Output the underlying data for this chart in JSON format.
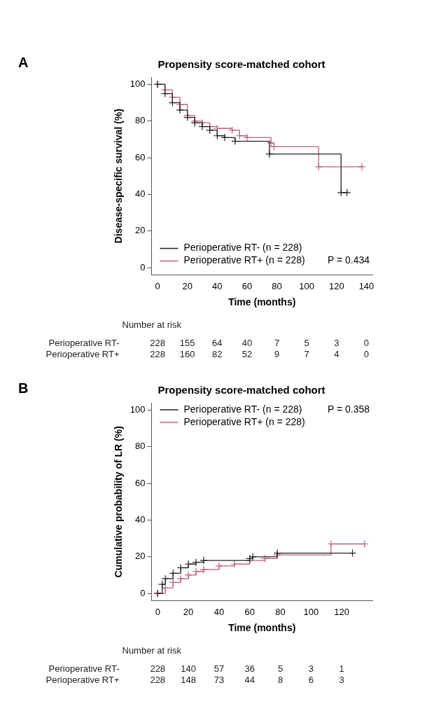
{
  "chart_data": [
    {
      "type": "step",
      "title": "Propensity score-matched cohort",
      "xlabel": "Time (months)",
      "ylabel": "Disease-specific survival (%)",
      "xlim": [
        -4,
        144
      ],
      "ylim": [
        -4,
        104
      ],
      "xticks": [
        0,
        20,
        40,
        60,
        80,
        100,
        120,
        140
      ],
      "yticks": [
        0,
        20,
        40,
        60,
        80,
        100
      ],
      "grid": false,
      "legend": "bottom left",
      "marker": "cross",
      "series": [
        {
          "name": "Perioperative RT- (n = 228)",
          "color": "#222222",
          "x": [
            0,
            5,
            10,
            15,
            20,
            25,
            30,
            35,
            40,
            45,
            52,
            75,
            123,
            127
          ],
          "values": [
            100,
            95,
            90,
            86,
            82,
            79,
            77,
            75,
            72,
            71,
            69,
            62,
            41,
            41
          ]
        },
        {
          "name": "Perioperative RT+ (n = 228)",
          "color": "#c0607a",
          "x": [
            0,
            5,
            10,
            15,
            20,
            25,
            30,
            35,
            40,
            50,
            55,
            60,
            76,
            78,
            108,
            137
          ],
          "values": [
            100,
            97,
            93,
            89,
            83,
            80,
            79,
            77,
            76,
            75,
            72,
            71,
            68,
            66,
            55,
            55
          ]
        }
      ],
      "annotations": [
        "A",
        "P = 0.434",
        "Number at risk",
        "Perioperative RT-",
        "228",
        "155",
        "64",
        "40",
        "7",
        "5",
        "3",
        "0",
        "Perioperative RT+",
        "228",
        "160",
        "82",
        "52",
        "9",
        "7",
        "4",
        "0"
      ]
    },
    {
      "type": "step",
      "title": "Propensity score-matched cohort",
      "xlabel": "Time (months)",
      "ylabel": "Cumulative probability of LR (%)",
      "xlim": [
        -4,
        140
      ],
      "ylim": [
        -4,
        104
      ],
      "xticks": [
        0,
        20,
        40,
        60,
        80,
        100,
        120
      ],
      "yticks": [
        0,
        20,
        40,
        60,
        80,
        100
      ],
      "grid": false,
      "legend": "top left",
      "marker": "cross",
      "series": [
        {
          "name": "Perioperative RT- (n = 228)",
          "color": "#222222",
          "x": [
            0,
            3,
            5,
            10,
            15,
            20,
            25,
            30,
            60,
            62,
            78,
            127
          ],
          "values": [
            0,
            5,
            8,
            11,
            14,
            16,
            17,
            18,
            19,
            20,
            22,
            22
          ]
        },
        {
          "name": "Perioperative RT+ (n = 228)",
          "color": "#c0607a",
          "x": [
            0,
            5,
            10,
            15,
            20,
            25,
            30,
            40,
            50,
            60,
            70,
            78,
            113,
            135
          ],
          "values": [
            0,
            3,
            6,
            8,
            10,
            12,
            13,
            15,
            16,
            18,
            19,
            21,
            27,
            27
          ]
        }
      ],
      "annotations": [
        "B",
        "P = 0.358",
        "Number at risk",
        "Perioperative RT-",
        "228",
        "140",
        "57",
        "36",
        "5",
        "3",
        "1",
        "Perioperative RT+",
        "228",
        "148",
        "73",
        "44",
        "8",
        "6",
        "3"
      ]
    }
  ]
}
